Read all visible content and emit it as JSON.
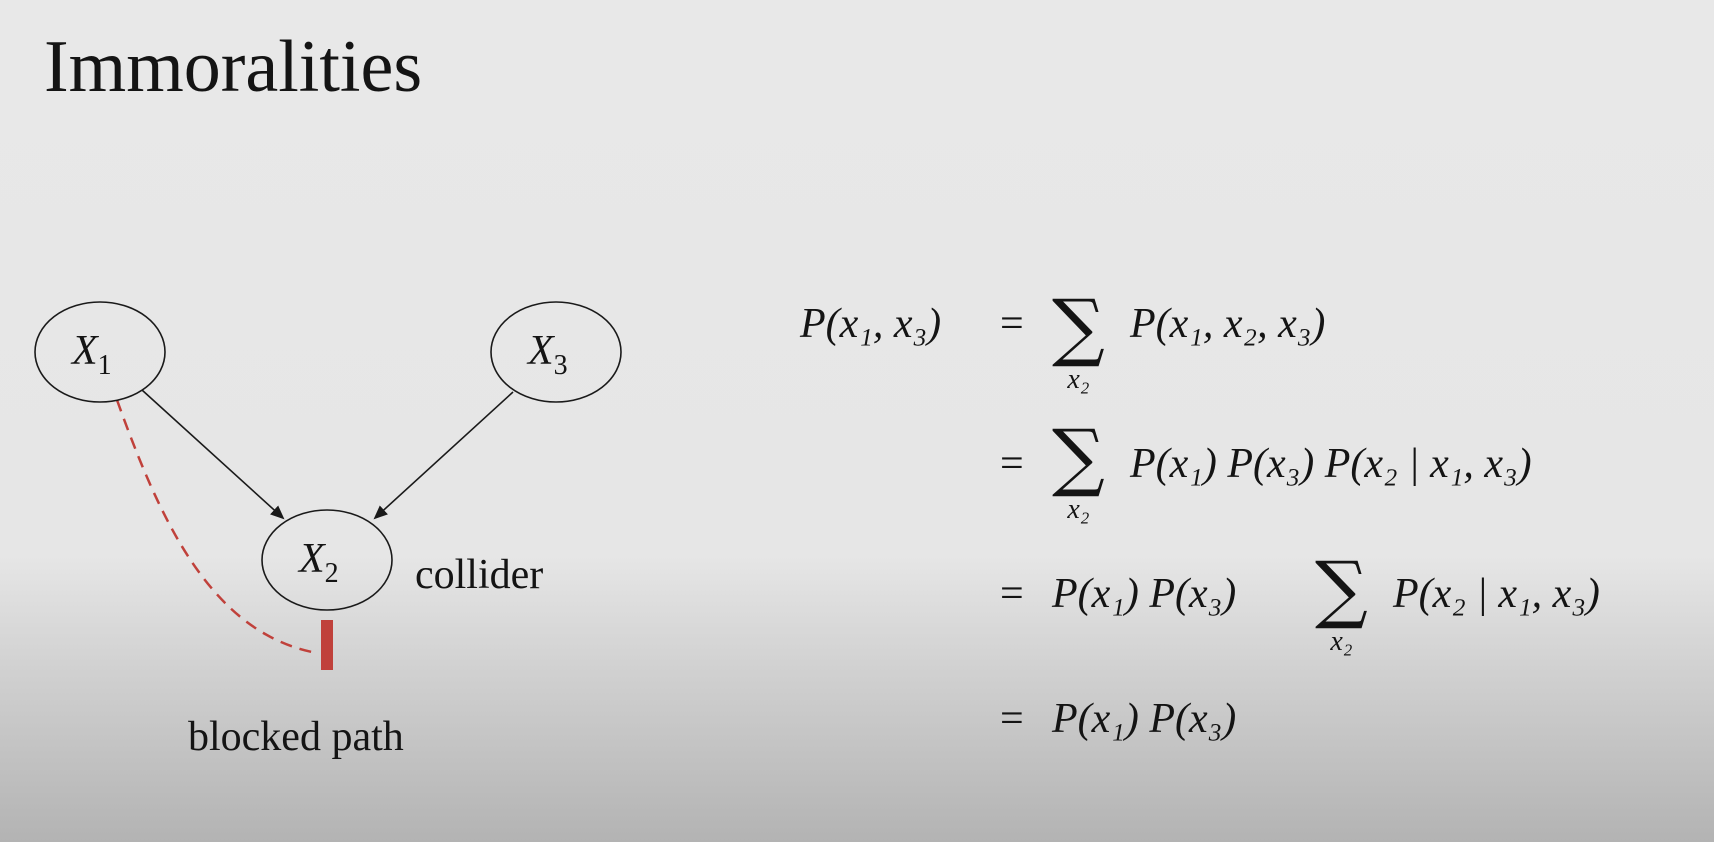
{
  "title": "Immoralities",
  "graph": {
    "nodes": [
      {
        "id": "x1",
        "name": "X",
        "sub": "1"
      },
      {
        "id": "x2",
        "name": "X",
        "sub": "2"
      },
      {
        "id": "x3",
        "name": "X",
        "sub": "3"
      }
    ],
    "edges": [
      {
        "from": "x1",
        "to": "x2"
      },
      {
        "from": "x3",
        "to": "x2"
      }
    ],
    "collider_label": "collider",
    "blocked_label": "blocked path",
    "colors": {
      "blocked": "#c0413b",
      "edge": "#1a1a1a"
    }
  },
  "equations": {
    "lhs": "P(x₁, x₃)",
    "sum_index": "x₂",
    "lines": [
      {
        "eq": "=",
        "before": "",
        "sum": true,
        "after": "P(x₁, x₂, x₃)"
      },
      {
        "eq": "=",
        "before": "",
        "sum": true,
        "after": "P(x₁) P(x₃) P(x₂ | x₁, x₃)"
      },
      {
        "eq": "=",
        "before": "P(x₁) P(x₃)",
        "sum": true,
        "after": "P(x₂ | x₁, x₃)"
      },
      {
        "eq": "=",
        "before": "P(x₁) P(x₃)",
        "sum": false,
        "after": ""
      }
    ]
  }
}
